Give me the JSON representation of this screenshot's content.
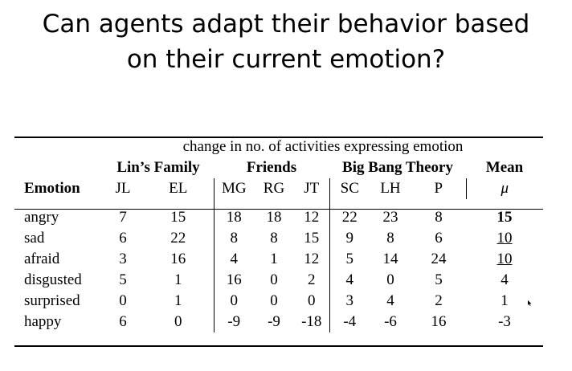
{
  "slide": {
    "title_line1": "Can agents adapt their behavior based",
    "title_line2": "on their current emotion?"
  },
  "table": {
    "caption": "change in no. of activities expressing emotion",
    "groups": {
      "lin": "Lin’s Family",
      "friends": "Friends",
      "bbt": "Big Bang Theory",
      "mean": "Mean"
    },
    "columns": [
      "Emotion",
      "JL",
      "EL",
      "MG",
      "RG",
      "JT",
      "SC",
      "LH",
      "P",
      "μ"
    ],
    "rows": [
      [
        "angry",
        "7",
        "15",
        "18",
        "18",
        "12",
        "22",
        "23",
        "8",
        "15"
      ],
      [
        "sad",
        "6",
        "22",
        "8",
        "8",
        "15",
        "9",
        "8",
        "6",
        "10"
      ],
      [
        "afraid",
        "3",
        "16",
        "4",
        "1",
        "12",
        "5",
        "14",
        "24",
        "10"
      ],
      [
        "disgusted",
        "5",
        "1",
        "16",
        "0",
        "2",
        "4",
        "0",
        "5",
        "4"
      ],
      [
        "surprised",
        "0",
        "1",
        "0",
        "0",
        "0",
        "3",
        "4",
        "2",
        "1"
      ],
      [
        "happy",
        "6",
        "0",
        "-9",
        "-9",
        "-18",
        "-4",
        "-6",
        "16",
        "-3"
      ]
    ]
  }
}
